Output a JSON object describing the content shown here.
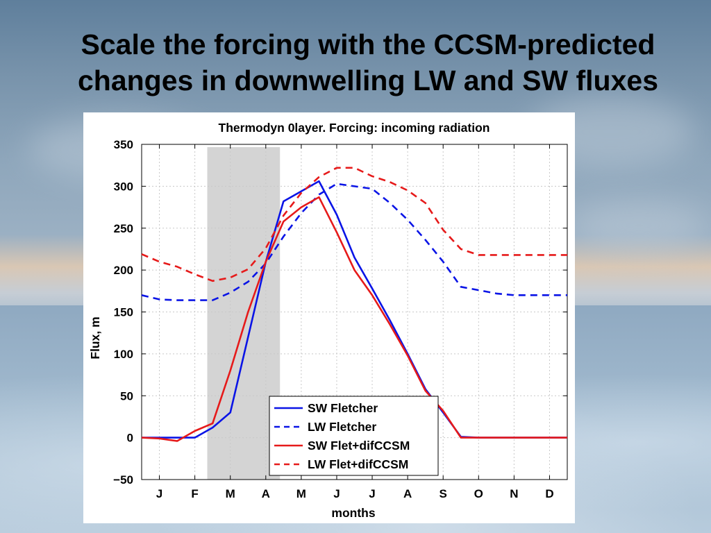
{
  "slide": {
    "title_line1": "Scale the forcing with the CCSM-predicted",
    "title_line2": "changes in downwelling LW and SW fluxes"
  },
  "chart_data": {
    "type": "line",
    "title": "Thermodyn 0layer. Forcing: incoming radiation",
    "xlabel": "months",
    "ylabel": "Flux, m",
    "x_tick_labels": [
      "J",
      "F",
      "M",
      "A",
      "M",
      "J",
      "J",
      "A",
      "S",
      "O",
      "N",
      "D"
    ],
    "yticks": [
      "350",
      "300",
      "250",
      "200",
      "150",
      "100",
      "50",
      "0",
      "−50"
    ],
    "ylim": [
      -50,
      350
    ],
    "xlim": [
      0.5,
      12.5
    ],
    "grid": true,
    "legend_position": "lower-right",
    "shaded_band": {
      "x_from": 2.35,
      "x_to": 4.4,
      "color": "#d4d4d4"
    },
    "series": [
      {
        "name": "SW Fletcher",
        "color": "#0a14e6",
        "style": "solid",
        "x": [
          0.5,
          1.0,
          1.5,
          2.0,
          2.5,
          3.0,
          3.5,
          4.0,
          4.5,
          5.0,
          5.5,
          6.0,
          6.5,
          7.0,
          7.5,
          8.0,
          8.5,
          9.0,
          9.5,
          10.0,
          10.5,
          11.0,
          11.5,
          12.0,
          12.5
        ],
        "y": [
          0,
          0,
          0,
          0,
          12,
          30,
          120,
          210,
          282,
          294,
          306,
          266,
          215,
          178,
          140,
          100,
          58,
          30,
          1,
          0,
          0,
          0,
          0,
          0,
          0
        ]
      },
      {
        "name": "LW Fletcher",
        "color": "#0a14e6",
        "style": "dashed",
        "x": [
          0.5,
          1.0,
          1.5,
          2.0,
          2.5,
          3.0,
          3.5,
          4.0,
          4.5,
          5.0,
          5.5,
          6.0,
          6.5,
          7.0,
          7.5,
          8.0,
          8.5,
          9.0,
          9.5,
          10.0,
          10.5,
          11.0,
          11.5,
          12.0,
          12.5
        ],
        "y": [
          170,
          165,
          164,
          164,
          164,
          173,
          186,
          208,
          240,
          268,
          290,
          303,
          300,
          297,
          280,
          260,
          236,
          210,
          180,
          176,
          172,
          170,
          170,
          170,
          170
        ]
      },
      {
        "name": "SW Flet+difCCSM",
        "color": "#e61a1a",
        "style": "solid",
        "x": [
          0.5,
          1.0,
          1.5,
          2.0,
          2.5,
          3.0,
          3.5,
          4.0,
          4.5,
          5.0,
          5.5,
          6.0,
          6.5,
          7.0,
          7.5,
          8.0,
          8.5,
          9.0,
          9.5,
          10.0,
          10.5,
          11.0,
          11.5,
          12.0,
          12.5
        ],
        "y": [
          0,
          -1,
          -4,
          8,
          17,
          80,
          150,
          210,
          258,
          275,
          287,
          245,
          200,
          170,
          135,
          98,
          56,
          32,
          0,
          0,
          0,
          0,
          0,
          0,
          0
        ]
      },
      {
        "name": "LW Flet+difCCSM",
        "color": "#e61a1a",
        "style": "dashed",
        "x": [
          0.5,
          1.0,
          1.5,
          2.0,
          2.5,
          3.0,
          3.5,
          4.0,
          4.5,
          5.0,
          5.5,
          6.0,
          6.5,
          7.0,
          7.5,
          8.0,
          8.5,
          9.0,
          9.5,
          10.0,
          10.5,
          11.0,
          11.5,
          12.0,
          12.5
        ],
        "y": [
          219,
          210,
          204,
          195,
          187,
          191,
          201,
          226,
          265,
          292,
          311,
          322,
          322,
          312,
          305,
          295,
          280,
          248,
          225,
          218,
          218,
          218,
          218,
          218,
          218
        ]
      }
    ]
  }
}
